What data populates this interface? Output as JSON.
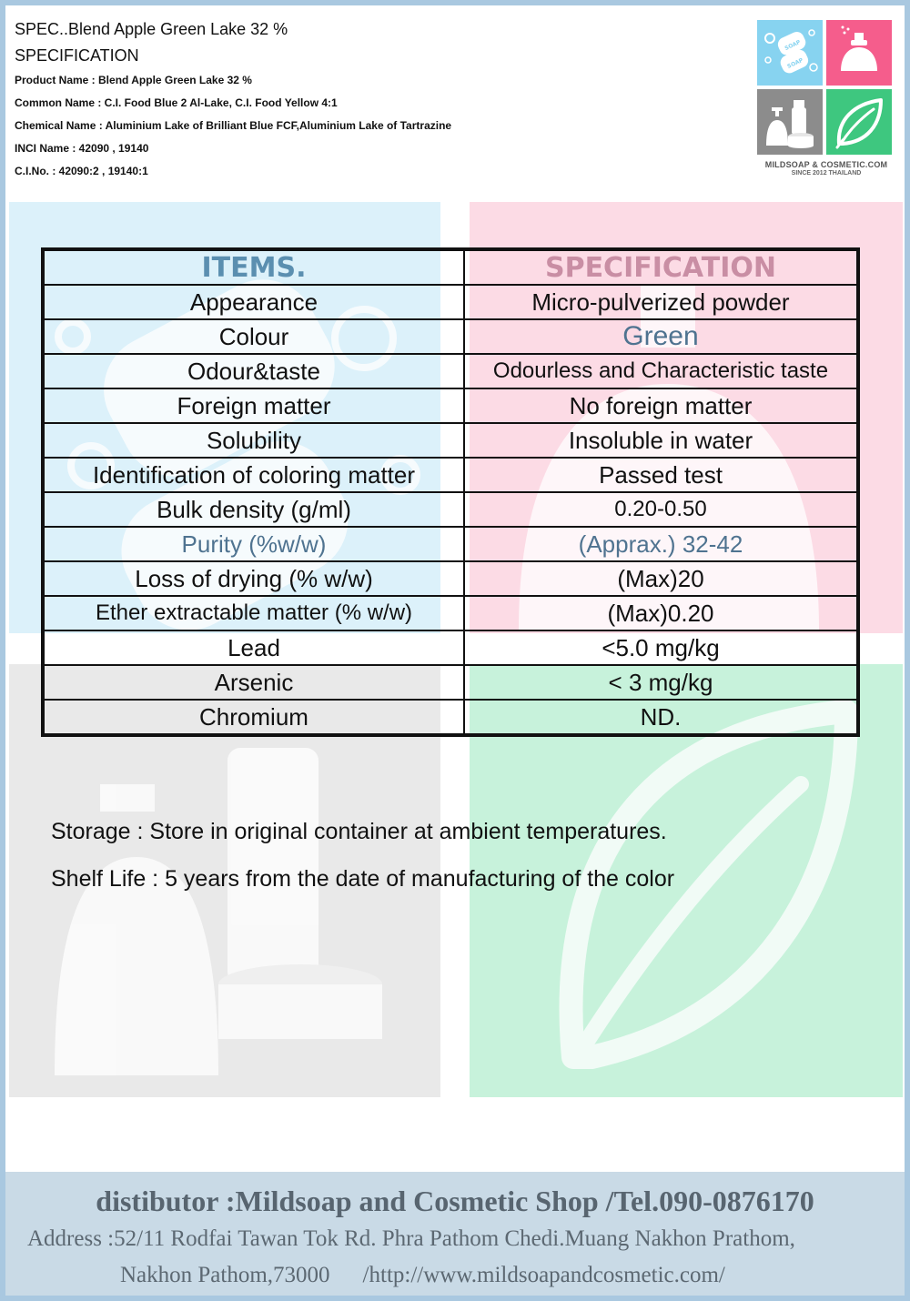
{
  "header": {
    "title": "SPEC..Blend Apple Green Lake 32 %",
    "subtitle": "SPECIFICATION",
    "product_name": "Product Name : Blend Apple Green Lake 32 %",
    "common_name": "Common Name : C.I. Food Blue 2 Al-Lake, C.I. Food Yellow 4:1",
    "chemical_name": "Chemical Name : Aluminium Lake of Brilliant Blue FCF,Aluminium Lake of Tartrazine",
    "inci_name": "INCI Name : 42090 , 19140",
    "ci_no": "C.I.No. : 42090:2 , 19140:1"
  },
  "logo": {
    "name": "MILDSOAP & COSMETIC.COM",
    "since": "SINCE 2012 THAILAND",
    "soap_text": "SOAP",
    "colors": {
      "blue": "#87d3f0",
      "pink": "#f55d8c",
      "gray": "#8c8c8c",
      "green": "#3ec77f"
    },
    "icons": [
      "soap-bars-icon",
      "perfume-bottle-icon",
      "lotion-bottles-icon",
      "leaf-icon"
    ]
  },
  "table": {
    "headers": [
      "ITEMS.",
      "SPECIFICATION"
    ],
    "rows": [
      {
        "item": "Appearance",
        "spec": "Micro-pulverized powder"
      },
      {
        "item": "Colour",
        "spec": "Green"
      },
      {
        "item": "Odour&taste",
        "spec": "Odourless and Characteristic taste"
      },
      {
        "item": "Foreign matter",
        "spec": "No foreign matter"
      },
      {
        "item": "Solubility",
        "spec": "Insoluble in water"
      },
      {
        "item": "Identification of coloring matter",
        "spec": "Passed test"
      },
      {
        "item": "Bulk density (g/ml)",
        "spec": "0.20-0.50"
      },
      {
        "item": "Purity (%w/w)",
        "spec": "(Apprax.) 32-42"
      },
      {
        "item": "Loss of drying (% w/w)",
        "spec": "(Max)20"
      },
      {
        "item": "Ether extractable matter (% w/w)",
        "spec": "(Max)0.20"
      },
      {
        "item": "Lead",
        "spec": "<5.0 mg/kg"
      },
      {
        "item": "Arsenic",
        "spec": "< 3 mg/kg"
      },
      {
        "item": "Chromium",
        "spec": "ND."
      }
    ]
  },
  "notes": {
    "storage": "Storage : Store in original container at ambient temperatures.",
    "shelf_life": "Shelf Life : 5 years from the date of manufacturing of the color"
  },
  "footer": {
    "distributor": "distibutor :Mildsoap and Cosmetic Shop /Tel.090-0876170",
    "address_line1": "Address :52/11 Rodfai Tawan Tok Rd. Phra Pathom Chedi.Muang Nakhon Prathom,",
    "address_city": "Nakhon Pathom,73000",
    "website": "/http://www.mildsoapandcosmetic.com/"
  }
}
